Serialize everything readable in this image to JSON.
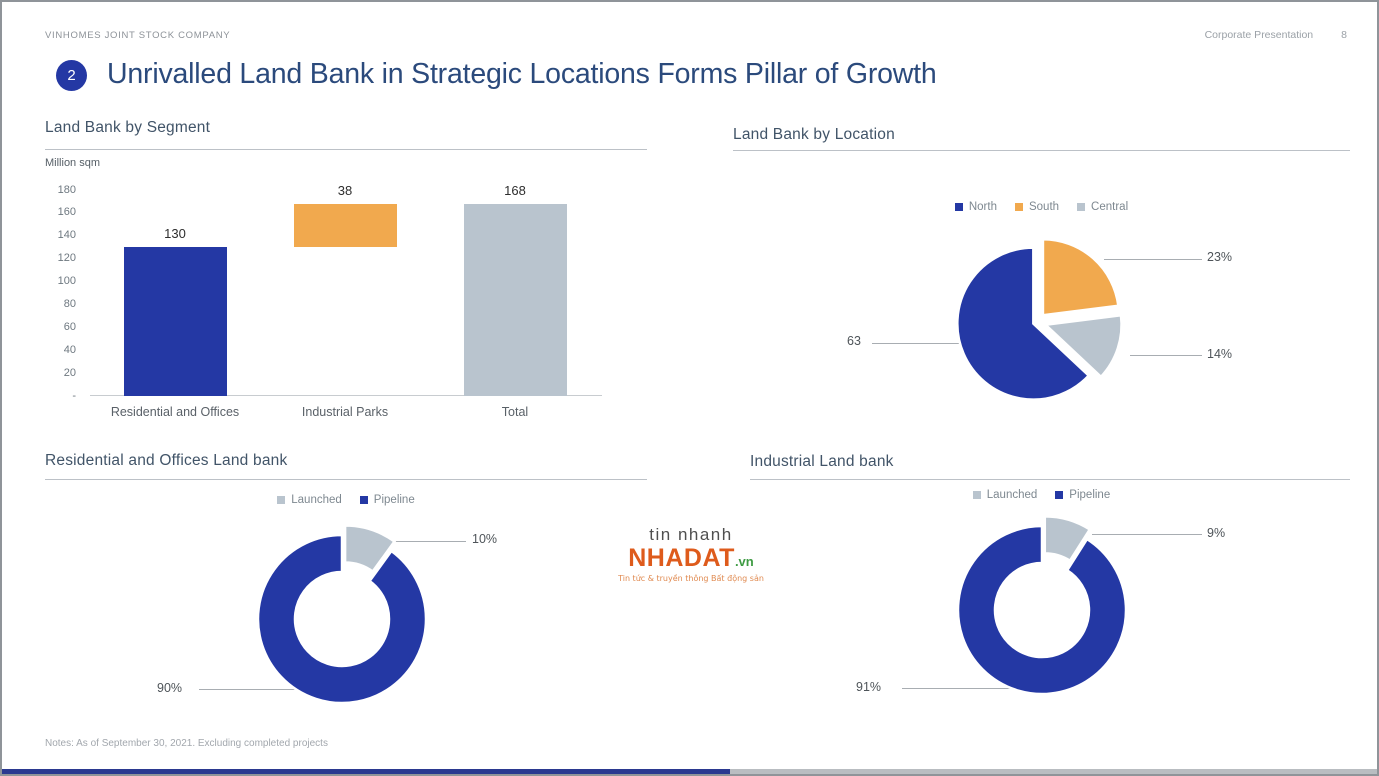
{
  "page": {
    "company": "VINHOMES JOINT STOCK COMPANY",
    "doc_label": "Corporate Presentation",
    "page_number": "8",
    "slide_number": "2",
    "title": "Unrivalled Land Bank in Strategic Locations Forms Pillar of Growth",
    "note": "Notes: As of September 30, 2021. Excluding completed projects"
  },
  "watermark": {
    "top": "tin nhanh",
    "brand": "NHADAT",
    "tld": ".vn",
    "tagline": "Tin tức & truyền thông Bất động sản"
  },
  "colors": {
    "blue": "#2438A4",
    "orange": "#F1A94E",
    "gray": "#B9C4CE",
    "title_navy": "#2B4A7C",
    "header_slate": "#415468"
  },
  "chart_data": [
    {
      "type": "bar",
      "title": "Land Bank by Segment",
      "ylabel": "Million sqm",
      "ylim": [
        0,
        180
      ],
      "yticks": [
        "180",
        "160",
        "140",
        "120",
        "100",
        "80",
        "60",
        "40",
        "20",
        "-"
      ],
      "categories": [
        "Residential and Offices",
        "Industrial Parks",
        "Total"
      ],
      "bars": [
        {
          "category": "Residential and Offices",
          "from": 0,
          "to": 130,
          "label": "130",
          "color": "blue"
        },
        {
          "category": "Industrial Parks",
          "from": 130,
          "to": 168,
          "label": "38",
          "color": "orange"
        },
        {
          "category": "Total",
          "from": 0,
          "to": 168,
          "label": "168",
          "color": "gray"
        }
      ]
    },
    {
      "type": "pie",
      "title": "Land Bank by Location",
      "legend": [
        {
          "name": "North",
          "color": "blue"
        },
        {
          "name": "South",
          "color": "orange"
        },
        {
          "name": "Central",
          "color": "gray"
        }
      ],
      "slices": [
        {
          "name": "South",
          "value": 23,
          "label": "23%",
          "color": "orange"
        },
        {
          "name": "Central",
          "value": 14,
          "label": "14%",
          "color": "gray"
        },
        {
          "name": "North",
          "value": 63,
          "label": "63",
          "color": "blue"
        }
      ]
    },
    {
      "type": "donut",
      "title": "Residential and Offices Land bank",
      "legend": [
        {
          "name": "Launched",
          "color": "gray"
        },
        {
          "name": "Pipeline",
          "color": "blue"
        }
      ],
      "slices": [
        {
          "name": "Launched",
          "value": 10,
          "label": "10%",
          "color": "gray"
        },
        {
          "name": "Pipeline",
          "value": 90,
          "label": "90%",
          "color": "blue"
        }
      ]
    },
    {
      "type": "donut",
      "title": "Industrial Land bank",
      "legend": [
        {
          "name": "Launched",
          "color": "gray"
        },
        {
          "name": "Pipeline",
          "color": "blue"
        }
      ],
      "slices": [
        {
          "name": "Launched",
          "value": 9,
          "label": "9%",
          "color": "gray"
        },
        {
          "name": "Pipeline",
          "value": 91,
          "label": "91%",
          "color": "blue"
        }
      ]
    }
  ]
}
